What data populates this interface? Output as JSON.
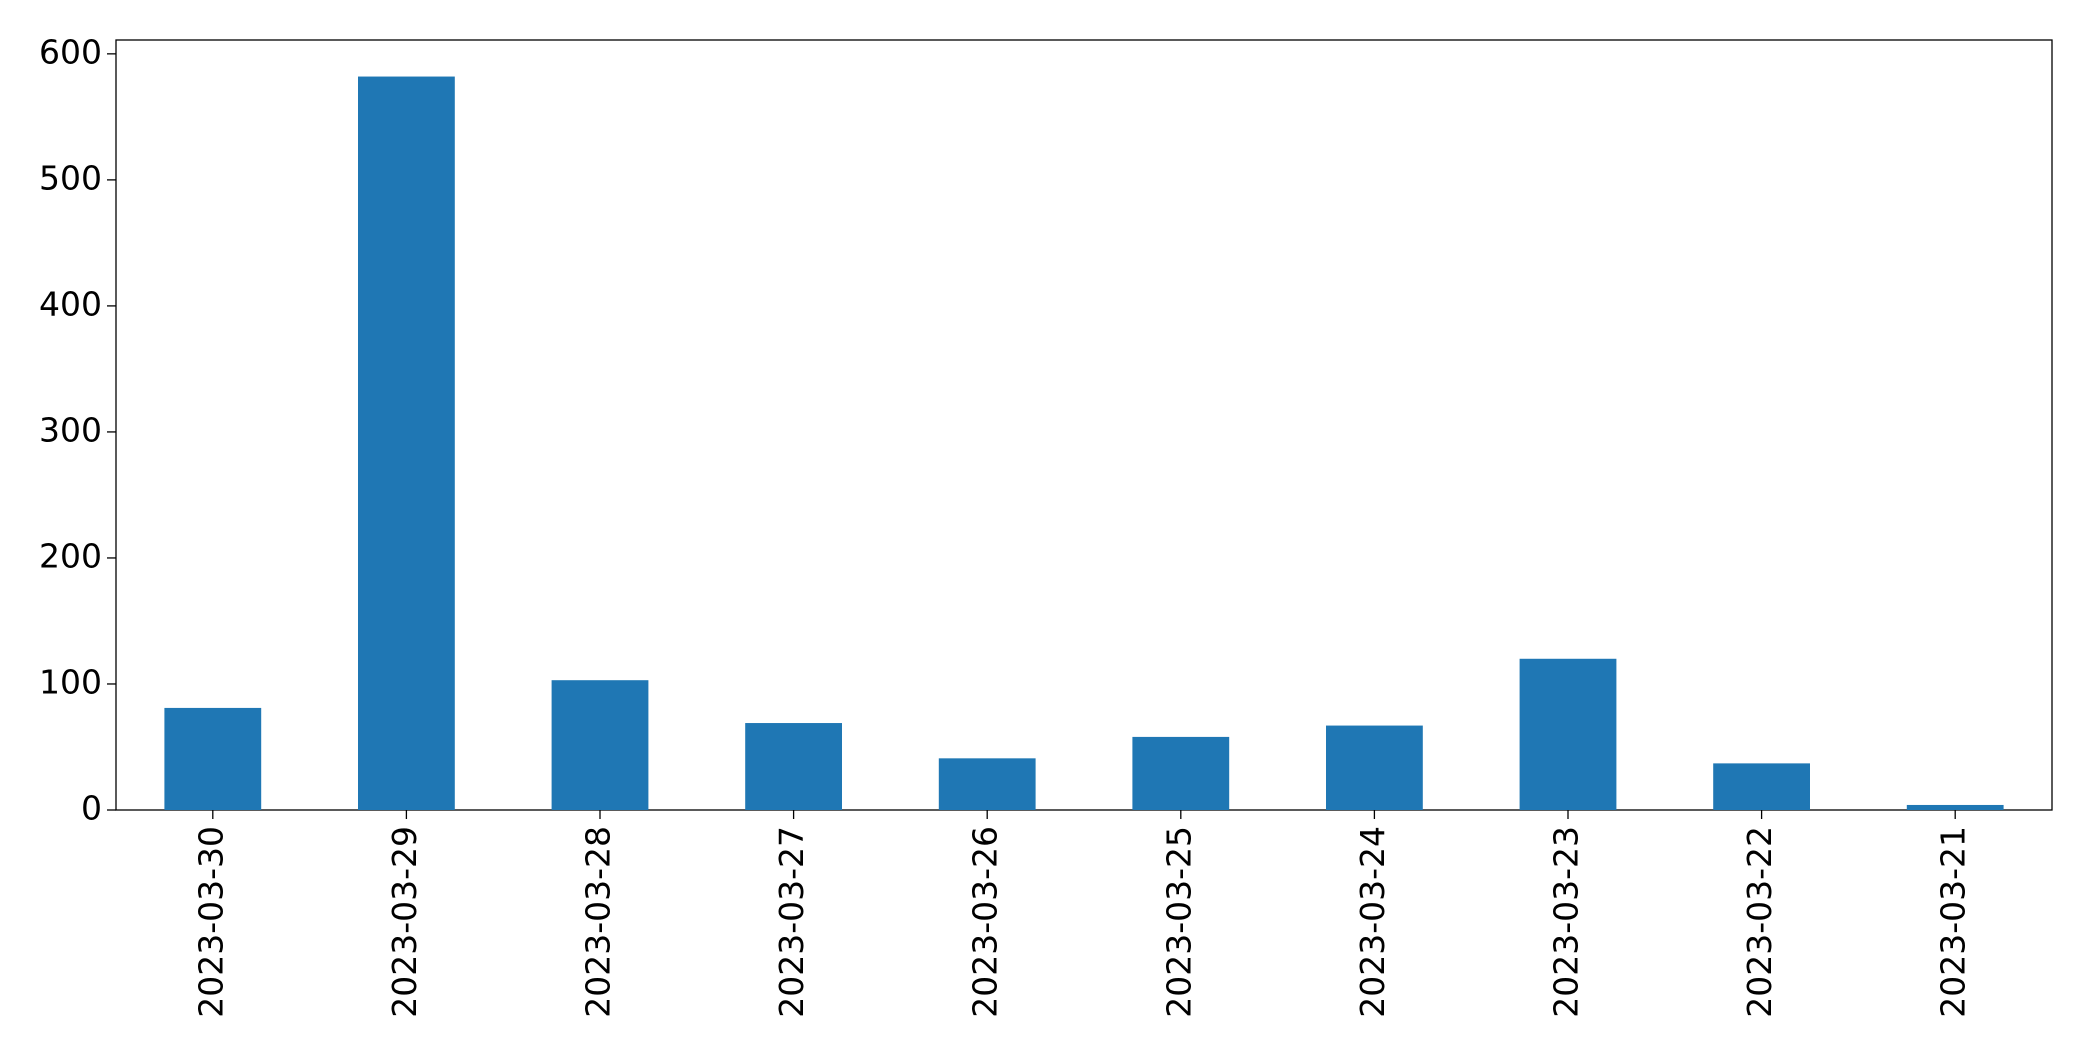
{
  "chart_data": {
    "type": "bar",
    "categories": [
      "2023-03-30",
      "2023-03-29",
      "2023-03-28",
      "2023-03-27",
      "2023-03-26",
      "2023-03-25",
      "2023-03-24",
      "2023-03-23",
      "2023-03-22",
      "2023-03-21"
    ],
    "values": [
      81,
      582,
      103,
      69,
      41,
      58,
      67,
      120,
      37,
      4
    ],
    "color": "#1f77b4",
    "ylim": [
      0,
      611
    ],
    "yticks": [
      0,
      100,
      200,
      300,
      400,
      500,
      600
    ],
    "grid": false
  }
}
